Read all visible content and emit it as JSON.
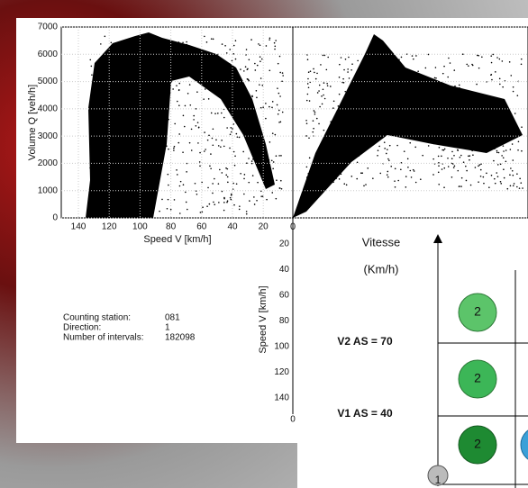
{
  "left_plot": {
    "y_label": "Volume Q [veh/h]",
    "x_label": "Speed V [km/h]",
    "y_ticks": [
      "0",
      "1000",
      "2000",
      "3000",
      "4000",
      "5000",
      "6000",
      "7000"
    ],
    "x_ticks": [
      "140",
      "120",
      "100",
      "80",
      "60",
      "40",
      "20"
    ]
  },
  "right_plot": {
    "x_start": "0"
  },
  "lower_plot": {
    "y_label": "Speed V [km/h]",
    "y_ticks": [
      "0",
      "20",
      "40",
      "60",
      "80",
      "100",
      "120",
      "140"
    ],
    "y_end": "0"
  },
  "station_info": {
    "rows": [
      [
        "Counting station:",
        "081"
      ],
      [
        "Direction:",
        "1"
      ],
      [
        "Number of intervals:",
        "182098"
      ]
    ]
  },
  "diagram": {
    "axis_title": "Vitesse",
    "axis_unit": "(Km/h)",
    "levels": [
      "V2 AS = 70",
      "V1 AS = 40"
    ],
    "circles": [
      "2",
      "2",
      "2"
    ],
    "origin": "1"
  }
}
